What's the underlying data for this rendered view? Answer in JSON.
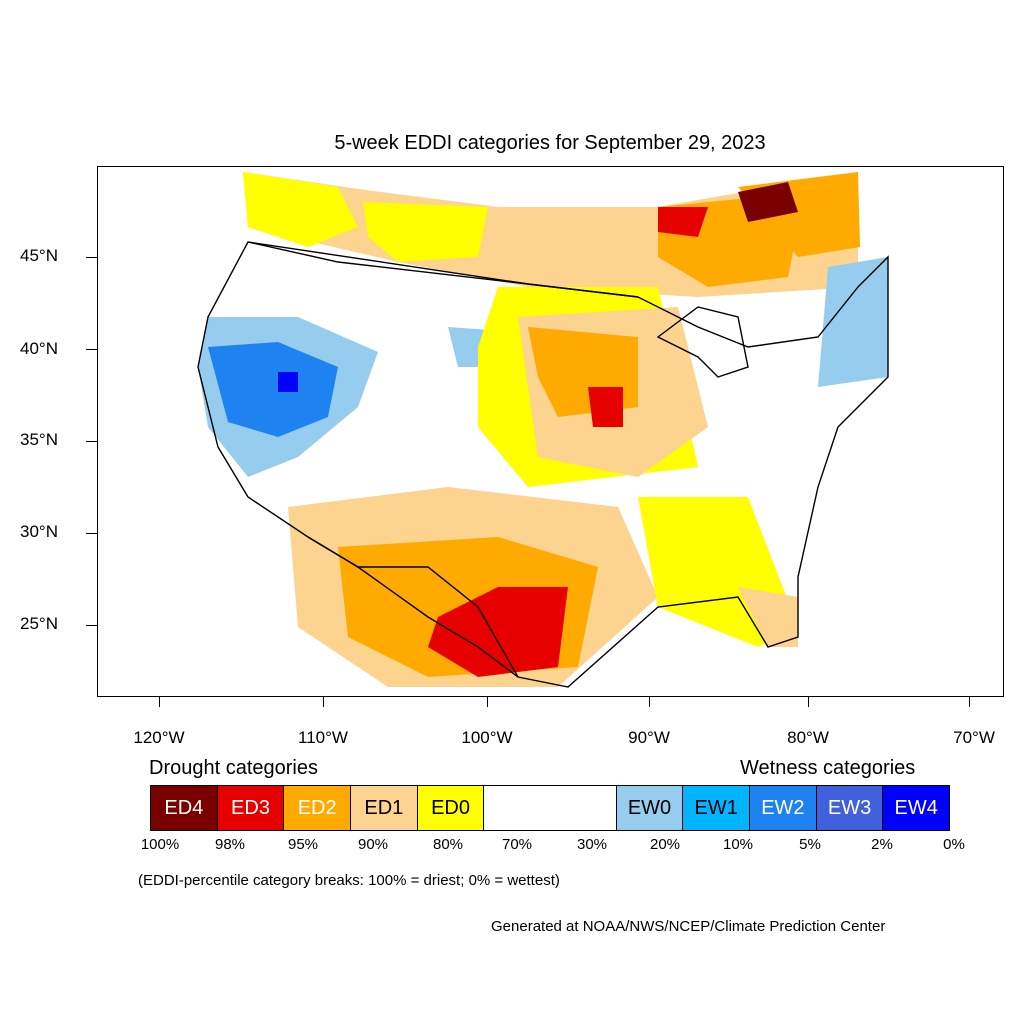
{
  "title": "5-week EDDI categories for September 29, 2023",
  "lat_labels": [
    "45°N",
    "40°N",
    "35°N",
    "30°N",
    "25°N"
  ],
  "lon_labels": [
    "120°W",
    "110°W",
    "100°W",
    "90°W",
    "80°W",
    "70°W"
  ],
  "legend": {
    "drought_heading": "Drought categories",
    "wetness_heading": "Wetness categories",
    "categories": [
      {
        "label": "ED4",
        "color": "#7a0000",
        "text_color": "#ffffff"
      },
      {
        "label": "ED3",
        "color": "#e60000",
        "text_color": "#ffffff"
      },
      {
        "label": "ED2",
        "color": "#ffaa00",
        "text_color": "#ffffff"
      },
      {
        "label": "ED1",
        "color": "#fcd38f",
        "text_color": "#000000"
      },
      {
        "label": "ED0",
        "color": "#ffff00",
        "text_color": "#000000"
      },
      {
        "label": "",
        "color": "#ffffff",
        "text_color": "#000000"
      },
      {
        "label": "EW0",
        "color": "#96cdee",
        "text_color": "#000000"
      },
      {
        "label": "EW1",
        "color": "#00b4ff",
        "text_color": "#000000"
      },
      {
        "label": "EW2",
        "color": "#1e82f0",
        "text_color": "#ffffff"
      },
      {
        "label": "EW3",
        "color": "#4060dc",
        "text_color": "#ffffff"
      },
      {
        "label": "EW4",
        "color": "#0000ff",
        "text_color": "#ffffff"
      }
    ],
    "percentiles": [
      "100%",
      "98%",
      "95%",
      "90%",
      "80%",
      "70%",
      "30%",
      "20%",
      "10%",
      "5%",
      "2%",
      "0%"
    ]
  },
  "note": "(EDDI-percentile category breaks: 100% = driest; 0% = wettest)",
  "credit": "Generated at NOAA/NWS/NCEP/Climate Prediction Center"
}
